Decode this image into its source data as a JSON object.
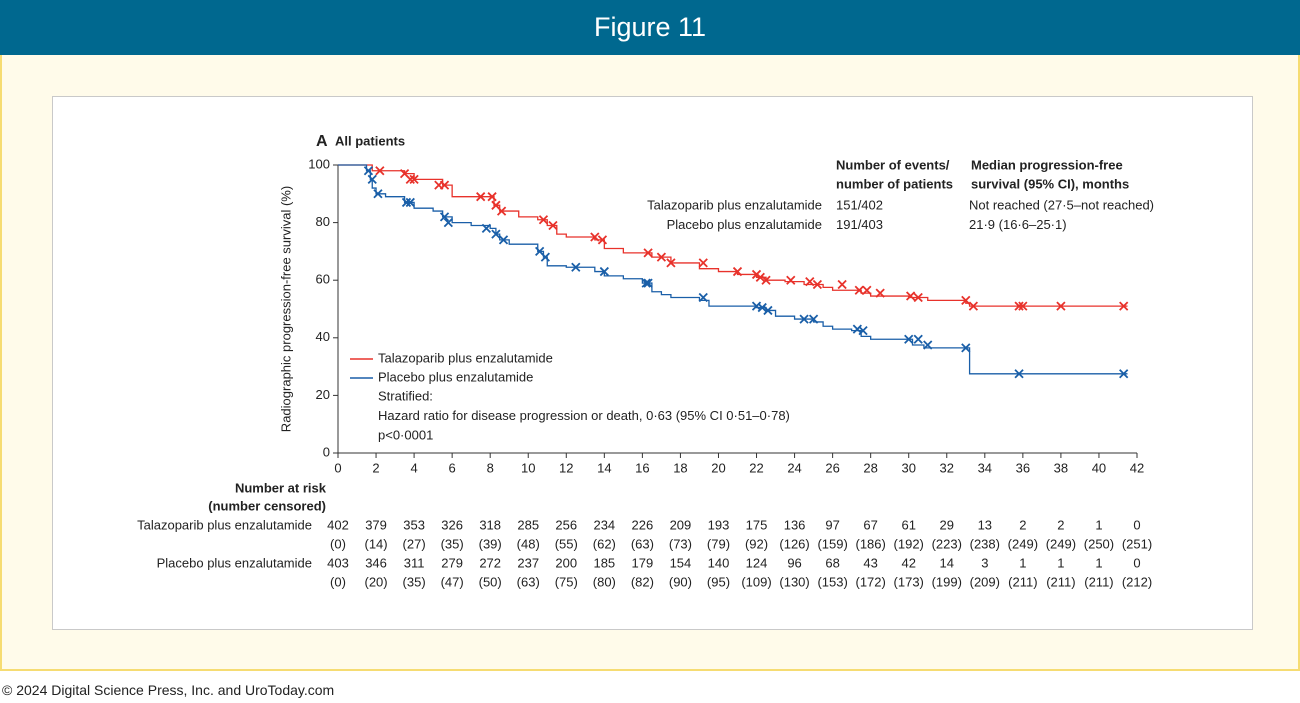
{
  "header": {
    "title": "Figure 11"
  },
  "footer": {
    "copyright": "© 2024 Digital Science Press, Inc. and UroToday.com"
  },
  "chart_data": {
    "type": "step",
    "panel_label": "A",
    "title": "All patients",
    "ylabel": "Radiographic progression-free survival (%)",
    "xlim": [
      0,
      42
    ],
    "ylim": [
      0,
      100
    ],
    "xticks": [
      0,
      2,
      4,
      6,
      8,
      10,
      12,
      14,
      16,
      18,
      20,
      22,
      24,
      26,
      28,
      30,
      32,
      34,
      36,
      38,
      40,
      42
    ],
    "yticks": [
      0,
      20,
      40,
      60,
      80,
      100
    ],
    "series": [
      {
        "name": "Talazoparib plus enzalutamide",
        "color": "#e8322b",
        "x": [
          0,
          1.8,
          3.5,
          4,
          5.5,
          6,
          8.2,
          8.5,
          9.5,
          10.5,
          11,
          11.5,
          12,
          13.5,
          14,
          15,
          16.5,
          17.5,
          19,
          20,
          21,
          22,
          22.5,
          23.5,
          24.5,
          25.5,
          26,
          27.5,
          28,
          30,
          31,
          33,
          33.2,
          41.5
        ],
        "values": [
          100,
          98,
          97,
          95,
          93,
          89,
          86,
          84,
          82,
          81,
          79,
          76,
          75,
          74,
          71,
          69.5,
          68,
          66,
          64,
          63,
          62,
          61,
          60,
          59.5,
          58.5,
          57.5,
          56.5,
          55.5,
          54.5,
          54,
          53,
          52,
          51,
          51
        ],
        "censor_x": [
          2.2,
          3.5,
          3.8,
          4,
          5.3,
          5.6,
          7.5,
          8.1,
          8.3,
          8.6,
          10.8,
          11.3,
          13.5,
          13.9,
          16.3,
          17,
          17.5,
          19.2,
          21,
          22,
          22.2,
          22.5,
          23.8,
          24.8,
          25.2,
          26.5,
          27.4,
          27.8,
          28.5,
          30.1,
          30.5,
          33,
          33.4,
          35.8,
          36,
          38,
          41.3
        ],
        "censor_y": [
          98,
          97,
          95,
          95,
          93,
          93,
          89,
          89,
          86,
          84,
          81,
          79,
          75,
          74,
          69.5,
          68,
          66,
          66,
          63,
          62,
          61,
          60,
          60,
          59.5,
          58.5,
          58.5,
          56.5,
          56.5,
          55.5,
          54.5,
          54,
          53,
          51,
          51,
          51,
          51,
          51
        ]
      },
      {
        "name": "Placebo plus enzalutamide",
        "color": "#1a5fa8",
        "x": [
          0,
          1.5,
          1.7,
          1.8,
          2,
          2.5,
          3.5,
          4,
          5,
          5.5,
          6,
          7,
          8,
          8.3,
          8.5,
          9,
          10.5,
          10.8,
          11,
          12,
          13.5,
          14,
          15,
          16,
          16.5,
          17,
          17.5,
          19,
          19.5,
          22,
          22.5,
          23,
          24,
          25,
          25.5,
          26,
          27,
          27.5,
          28,
          30.2,
          30.8,
          33.2,
          41.5
        ],
        "values": [
          100,
          98,
          95,
          92,
          90,
          89,
          87,
          85,
          84,
          82,
          80,
          79,
          78,
          76,
          74,
          72.5,
          70,
          68,
          65,
          64.5,
          63,
          61.5,
          60.5,
          59,
          56,
          55,
          54,
          53,
          51,
          50.5,
          49.5,
          47.5,
          46.5,
          45.5,
          44,
          43,
          42.5,
          40.5,
          39.5,
          37.5,
          36.5,
          27.5,
          27.5
        ],
        "censor_x": [
          1.6,
          1.8,
          2.1,
          3.6,
          3.8,
          5.6,
          5.8,
          7.8,
          8.3,
          8.7,
          10.6,
          10.9,
          12.5,
          14,
          16.2,
          16.3,
          19.2,
          22,
          22.3,
          22.6,
          24.5,
          25,
          27.3,
          27.6,
          30,
          30.5,
          31,
          33,
          35.8,
          41.3
        ],
        "censor_y": [
          98,
          95,
          90,
          87,
          87,
          82,
          80,
          78,
          76,
          74,
          70,
          68,
          64.5,
          63,
          59,
          59,
          54,
          51,
          50.5,
          49.5,
          46.5,
          46.5,
          43,
          42.5,
          39.5,
          39.5,
          37.5,
          36.5,
          27.5,
          27.5
        ]
      }
    ],
    "events_table": {
      "headers": [
        [
          "Number of events/",
          "number of patients"
        ],
        [
          "Median progression-free",
          "survival (95% CI), months"
        ]
      ],
      "rows": [
        [
          "Talazoparib plus enzalutamide",
          "151/402",
          "Not reached (27·5–not reached)"
        ],
        [
          "Placebo plus enzalutamide",
          "191/403",
          "21·9 (16·6–25·1)"
        ]
      ]
    },
    "notes": [
      "Stratified:",
      "Hazard ratio for disease progression or death, 0·63 (95% CI 0·51–0·78)",
      "p<0·0001"
    ],
    "risk_table": {
      "title": [
        "Number at risk",
        "(number censored)"
      ],
      "rows": [
        {
          "name": "Talazoparib plus enzalutamide",
          "at_risk": [
            "402",
            "379",
            "353",
            "326",
            "318",
            "285",
            "256",
            "234",
            "226",
            "209",
            "193",
            "175",
            "136",
            "97",
            "67",
            "61",
            "29",
            "13",
            "2",
            "2",
            "1",
            "0"
          ],
          "censored": [
            "(0)",
            "(14)",
            "(27)",
            "(35)",
            "(39)",
            "(48)",
            "(55)",
            "(62)",
            "(63)",
            "(73)",
            "(79)",
            "(92)",
            "(126)",
            "(159)",
            "(186)",
            "(192)",
            "(223)",
            "(238)",
            "(249)",
            "(249)",
            "(250)",
            "(251)"
          ]
        },
        {
          "name": "Placebo plus enzalutamide",
          "at_risk": [
            "403",
            "346",
            "311",
            "279",
            "272",
            "237",
            "200",
            "185",
            "179",
            "154",
            "140",
            "124",
            "96",
            "68",
            "43",
            "42",
            "14",
            "3",
            "1",
            "1",
            "1",
            "0"
          ],
          "censored": [
            "(0)",
            "(20)",
            "(35)",
            "(47)",
            "(50)",
            "(63)",
            "(75)",
            "(80)",
            "(82)",
            "(90)",
            "(95)",
            "(109)",
            "(130)",
            "(153)",
            "(172)",
            "(173)",
            "(199)",
            "(209)",
            "(211)",
            "(211)",
            "(211)",
            "(212)"
          ]
        }
      ]
    }
  }
}
